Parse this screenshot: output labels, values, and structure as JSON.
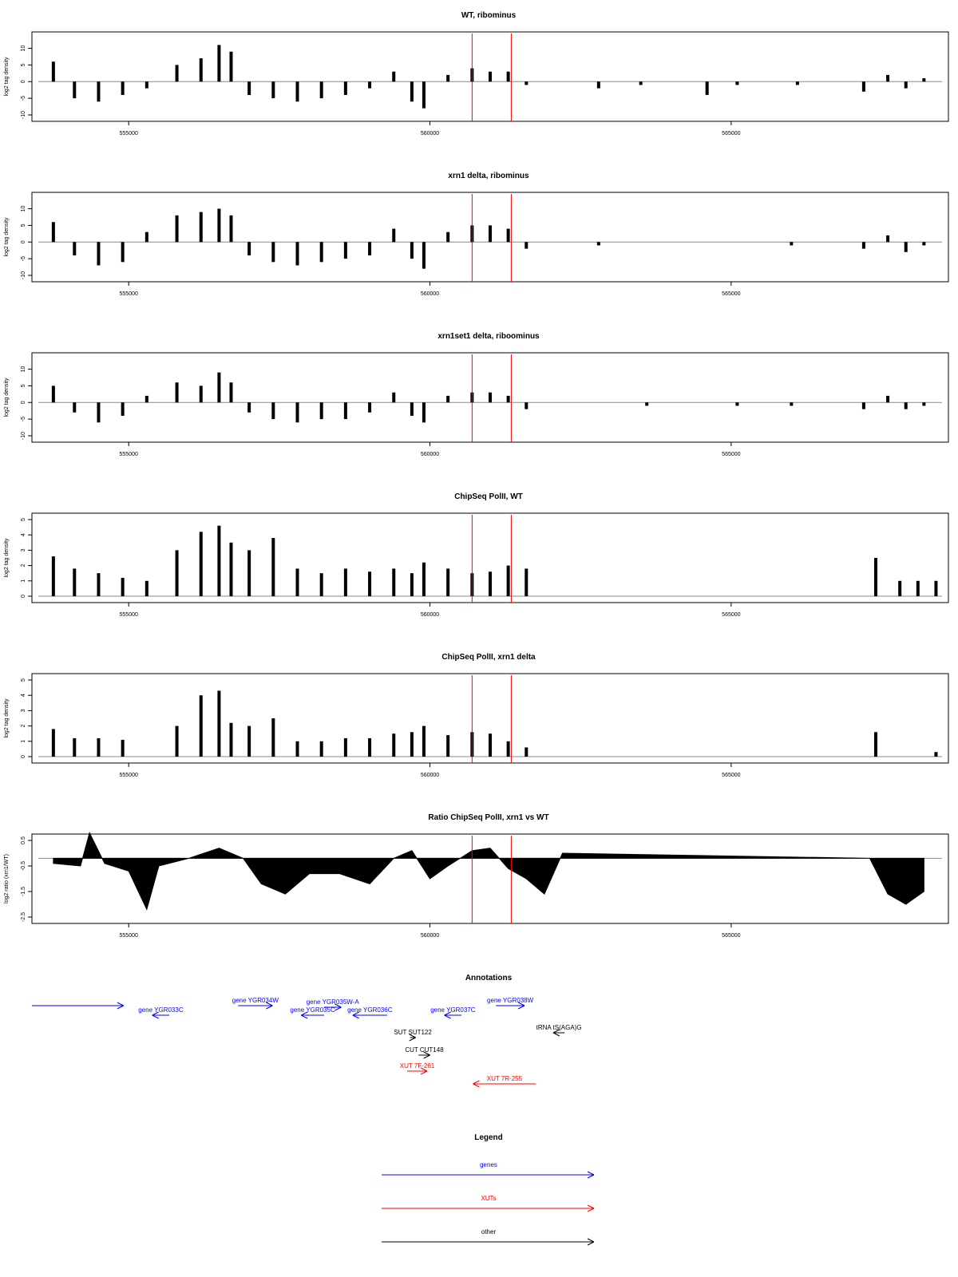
{
  "chart_data": [
    {
      "type": "bar",
      "title": "WT, ribominus",
      "ylabel": "log2 tag density",
      "ylim": [
        -10,
        13
      ],
      "yticks": [
        -10,
        -5,
        0,
        5,
        10
      ],
      "xlim": [
        553500,
        568500
      ],
      "xticks": [
        555000,
        560000,
        565000
      ],
      "marker_lines": [
        560700,
        561350
      ],
      "marker_color": "#ff0000",
      "series": [
        {
          "values": [
            [
              553750,
              6
            ],
            [
              554100,
              -5
            ],
            [
              554500,
              -6
            ],
            [
              554900,
              -4
            ],
            [
              555300,
              -2
            ],
            [
              555800,
              5
            ],
            [
              556200,
              7
            ],
            [
              556500,
              11
            ],
            [
              556700,
              9
            ],
            [
              557000,
              -4
            ],
            [
              557400,
              -5
            ],
            [
              557800,
              -6
            ],
            [
              558200,
              -5
            ],
            [
              558600,
              -4
            ],
            [
              559000,
              -2
            ],
            [
              559400,
              3
            ],
            [
              559700,
              -6
            ],
            [
              559900,
              -8
            ],
            [
              560300,
              2
            ],
            [
              560700,
              4
            ],
            [
              561000,
              3
            ],
            [
              561300,
              3
            ],
            [
              561600,
              -1
            ],
            [
              562800,
              -2
            ],
            [
              563500,
              -1
            ],
            [
              564600,
              -4
            ],
            [
              565100,
              -1
            ],
            [
              566100,
              -1
            ],
            [
              567200,
              -3
            ],
            [
              567600,
              2
            ],
            [
              567900,
              -2
            ],
            [
              568200,
              1
            ]
          ]
        }
      ]
    },
    {
      "type": "bar",
      "title": "xrn1 delta, ribominus",
      "ylabel": "log2 tag density",
      "ylim": [
        -10,
        13
      ],
      "yticks": [
        -10,
        -5,
        0,
        5,
        10
      ],
      "xlim": [
        553500,
        568500
      ],
      "xticks": [
        555000,
        560000,
        565000
      ],
      "marker_lines": [
        560700,
        561350
      ],
      "marker_color": "#ff0000",
      "series": [
        {
          "values": [
            [
              553750,
              6
            ],
            [
              554100,
              -4
            ],
            [
              554500,
              -7
            ],
            [
              554900,
              -6
            ],
            [
              555300,
              3
            ],
            [
              555800,
              8
            ],
            [
              556200,
              9
            ],
            [
              556500,
              10
            ],
            [
              556700,
              8
            ],
            [
              557000,
              -4
            ],
            [
              557400,
              -6
            ],
            [
              557800,
              -7
            ],
            [
              558200,
              -6
            ],
            [
              558600,
              -5
            ],
            [
              559000,
              -4
            ],
            [
              559400,
              4
            ],
            [
              559700,
              -5
            ],
            [
              559900,
              -8
            ],
            [
              560300,
              3
            ],
            [
              560700,
              5
            ],
            [
              561000,
              5
            ],
            [
              561300,
              4
            ],
            [
              561600,
              -2
            ],
            [
              562800,
              -1
            ],
            [
              566000,
              -1
            ],
            [
              567200,
              -2
            ],
            [
              567600,
              2
            ],
            [
              567900,
              -3
            ],
            [
              568200,
              -1
            ]
          ]
        }
      ]
    },
    {
      "type": "bar",
      "title": "xrn1set1 delta, riboominus",
      "ylabel": "log2 tag density",
      "ylim": [
        -10,
        13
      ],
      "yticks": [
        -10,
        -5,
        0,
        5,
        10
      ],
      "xlim": [
        553500,
        568500
      ],
      "xticks": [
        555000,
        560000,
        565000
      ],
      "marker_lines": [
        560700,
        561350
      ],
      "marker_color": "#ff0000",
      "series": [
        {
          "values": [
            [
              553750,
              5
            ],
            [
              554100,
              -3
            ],
            [
              554500,
              -6
            ],
            [
              554900,
              -4
            ],
            [
              555300,
              2
            ],
            [
              555800,
              6
            ],
            [
              556200,
              5
            ],
            [
              556500,
              9
            ],
            [
              556700,
              6
            ],
            [
              557000,
              -3
            ],
            [
              557400,
              -5
            ],
            [
              557800,
              -6
            ],
            [
              558200,
              -5
            ],
            [
              558600,
              -5
            ],
            [
              559000,
              -3
            ],
            [
              559400,
              3
            ],
            [
              559700,
              -4
            ],
            [
              559900,
              -6
            ],
            [
              560300,
              2
            ],
            [
              560700,
              3
            ],
            [
              561000,
              3
            ],
            [
              561300,
              2
            ],
            [
              561600,
              -2
            ],
            [
              563600,
              -1
            ],
            [
              565100,
              -1
            ],
            [
              566000,
              -1
            ],
            [
              567200,
              -2
            ],
            [
              567600,
              2
            ],
            [
              567900,
              -2
            ],
            [
              568200,
              -1
            ]
          ]
        }
      ]
    },
    {
      "type": "bar",
      "title": "ChipSeq PolII, WT",
      "ylabel": "log2 tag density",
      "ylim": [
        0,
        5
      ],
      "yticks": [
        0,
        1,
        2,
        3,
        4,
        5
      ],
      "xlim": [
        553500,
        568500
      ],
      "xticks": [
        555000,
        560000,
        565000
      ],
      "marker_lines": [
        560700,
        561350
      ],
      "marker_color": "#ff0000",
      "series": [
        {
          "values": [
            [
              553750,
              2.6
            ],
            [
              554100,
              1.8
            ],
            [
              554500,
              1.5
            ],
            [
              554900,
              1.2
            ],
            [
              555300,
              1.0
            ],
            [
              555800,
              3.0
            ],
            [
              556200,
              4.2
            ],
            [
              556500,
              4.6
            ],
            [
              556700,
              3.5
            ],
            [
              557000,
              3.0
            ],
            [
              557400,
              3.8
            ],
            [
              557800,
              1.8
            ],
            [
              558200,
              1.5
            ],
            [
              558600,
              1.8
            ],
            [
              559000,
              1.6
            ],
            [
              559400,
              1.8
            ],
            [
              559700,
              1.5
            ],
            [
              559900,
              2.2
            ],
            [
              560300,
              1.8
            ],
            [
              560700,
              1.5
            ],
            [
              561000,
              1.6
            ],
            [
              561300,
              2.0
            ],
            [
              561600,
              1.8
            ],
            [
              567400,
              2.5
            ],
            [
              567800,
              1.0
            ],
            [
              568100,
              1.0
            ],
            [
              568400,
              1.0
            ]
          ]
        }
      ]
    },
    {
      "type": "bar",
      "title": "ChipSeq PolII, xrn1 delta",
      "ylabel": "log2 tag density",
      "ylim": [
        0,
        5
      ],
      "yticks": [
        0,
        1,
        2,
        3,
        4,
        5
      ],
      "xlim": [
        553500,
        568500
      ],
      "xticks": [
        555000,
        560000,
        565000
      ],
      "marker_lines": [
        560700,
        561350
      ],
      "marker_color": "#ff0000",
      "series": [
        {
          "values": [
            [
              553750,
              1.8
            ],
            [
              554100,
              1.2
            ],
            [
              554500,
              1.2
            ],
            [
              554900,
              1.1
            ],
            [
              555300,
              0.0
            ],
            [
              555800,
              2.0
            ],
            [
              556200,
              4.0
            ],
            [
              556500,
              4.3
            ],
            [
              556700,
              2.2
            ],
            [
              557000,
              2.0
            ],
            [
              557400,
              2.5
            ],
            [
              557800,
              1.0
            ],
            [
              558200,
              1.0
            ],
            [
              558600,
              1.2
            ],
            [
              559000,
              1.2
            ],
            [
              559400,
              1.5
            ],
            [
              559700,
              1.6
            ],
            [
              559900,
              2.0
            ],
            [
              560300,
              1.4
            ],
            [
              560700,
              1.6
            ],
            [
              561000,
              1.5
            ],
            [
              561300,
              1.0
            ],
            [
              561600,
              0.6
            ],
            [
              567400,
              1.6
            ],
            [
              568400,
              0.3
            ]
          ]
        }
      ]
    },
    {
      "type": "area",
      "title": "Ratio ChipSeq PolII, xrn1 vs WT",
      "ylabel": "log2 ratio (xrn1/WT)",
      "ylim": [
        -2.5,
        0.5
      ],
      "yticks": [
        -2.5,
        -1.5,
        -0.5,
        0.5
      ],
      "xlim": [
        553500,
        568500
      ],
      "xticks": [
        555000,
        560000,
        565000
      ],
      "marker_lines": [
        560700,
        561350
      ],
      "marker_color": "#ff0000",
      "series": [
        {
          "values": [
            [
              553750,
              -0.4
            ],
            [
              554200,
              -0.5
            ],
            [
              554350,
              0.8
            ],
            [
              554600,
              -0.4
            ],
            [
              555000,
              -0.7
            ],
            [
              555300,
              -2.2
            ],
            [
              555500,
              -0.5
            ],
            [
              556000,
              -0.2
            ],
            [
              556500,
              0.2
            ],
            [
              556900,
              -0.2
            ],
            [
              557200,
              -1.2
            ],
            [
              557600,
              -1.6
            ],
            [
              558000,
              -0.8
            ],
            [
              558500,
              -0.8
            ],
            [
              559000,
              -1.2
            ],
            [
              559400,
              -0.2
            ],
            [
              559700,
              0.1
            ],
            [
              560000,
              -1.0
            ],
            [
              560300,
              -0.5
            ],
            [
              560700,
              0.1
            ],
            [
              561000,
              0.2
            ],
            [
              561300,
              -0.6
            ],
            [
              561600,
              -1.0
            ],
            [
              561900,
              -1.6
            ],
            [
              562200,
              0.0
            ],
            [
              567300,
              -0.2
            ],
            [
              567600,
              -1.6
            ],
            [
              567900,
              -2.0
            ],
            [
              568200,
              -1.5
            ]
          ]
        }
      ]
    }
  ],
  "annotations": {
    "title": "Annotations",
    "items": [
      {
        "label": "",
        "color": "#0000ff",
        "dir": "right",
        "start": 552600,
        "end": 554200
      },
      {
        "label": "gene YGR033C",
        "color": "#0000ff",
        "dir": "left",
        "start": 554700,
        "end": 555000
      },
      {
        "label": "gene YGR034W",
        "color": "#0000ff",
        "dir": "right",
        "start": 556200,
        "end": 556800
      },
      {
        "label": "gene YGR035C",
        "color": "#0000ff",
        "dir": "left",
        "start": 557300,
        "end": 557700
      },
      {
        "label": "gene YGR035W-A",
        "color": "#0000ff",
        "dir": "right",
        "start": 557700,
        "end": 558000
      },
      {
        "label": "gene YGR036C",
        "color": "#0000ff",
        "dir": "left",
        "start": 558200,
        "end": 558800
      },
      {
        "label": "gene YGR037C",
        "color": "#0000ff",
        "dir": "left",
        "start": 559800,
        "end": 560100
      },
      {
        "label": "gene YGR038W",
        "color": "#0000ff",
        "dir": "right",
        "start": 560700,
        "end": 561200
      },
      {
        "label": "tRNA tS(AGA)G",
        "color": "#000000",
        "dir": "left",
        "start": 561700,
        "end": 561900
      },
      {
        "label": "SUT SUT122",
        "color": "#000000",
        "dir": "right",
        "start": 559200,
        "end": 559300
      },
      {
        "label": "CUT CUT148",
        "color": "#000000",
        "dir": "right",
        "start": 559350,
        "end": 559550
      },
      {
        "label": "XUT 7F-261",
        "color": "#ff0000",
        "dir": "right",
        "start": 559150,
        "end": 559500
      },
      {
        "label": "XUT 7R-255",
        "color": "#ff0000",
        "dir": "left",
        "start": 560300,
        "end": 561400
      }
    ]
  },
  "legend": {
    "title": "Legend",
    "items": [
      {
        "label": "genes",
        "color": "#0000ff"
      },
      {
        "label": "XUTs",
        "color": "#ff0000"
      },
      {
        "label": "other",
        "color": "#000000"
      }
    ]
  }
}
